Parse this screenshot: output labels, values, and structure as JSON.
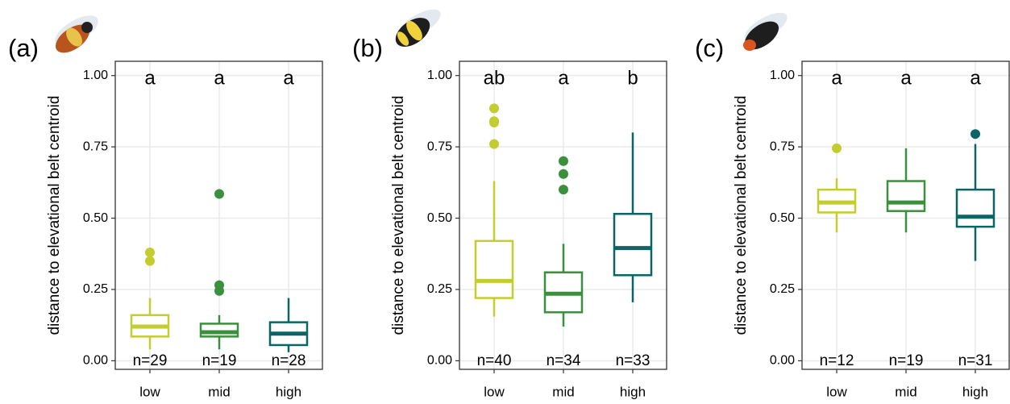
{
  "chart_data": [
    {
      "type": "box",
      "panel_label": "(a)",
      "ylabel": "distance to elevational belt centroid",
      "categories": [
        "low",
        "mid",
        "high"
      ],
      "colors": [
        "#c3cd2f",
        "#3a903c",
        "#0b6466"
      ],
      "whislo": [
        0.04,
        0.04,
        0.03
      ],
      "q1": [
        0.085,
        0.085,
        0.055
      ],
      "med": [
        0.12,
        0.1,
        0.095
      ],
      "q3": [
        0.16,
        0.13,
        0.135
      ],
      "whishi": [
        0.22,
        0.16,
        0.22
      ],
      "outliers": [
        [
          0.38,
          0.35
        ],
        [
          0.585,
          0.265,
          0.245
        ],
        []
      ],
      "letters": [
        "a",
        "a",
        "a"
      ],
      "n_labels": [
        "n=29",
        "n=19",
        "n=28"
      ],
      "ylim": [
        -0.03,
        1.05
      ],
      "yticks": [
        {
          "value": 0,
          "label": "0.00"
        },
        {
          "value": 0.25,
          "label": "0.25"
        },
        {
          "value": 0.5,
          "label": "0.50"
        },
        {
          "value": 0.75,
          "label": "0.75"
        },
        {
          "value": 1,
          "label": "1.00"
        }
      ],
      "grid": true
    },
    {
      "type": "box",
      "panel_label": "(b)",
      "ylabel": "distance to elevational belt centroid",
      "categories": [
        "low",
        "mid",
        "high"
      ],
      "colors": [
        "#c3cd2f",
        "#3a903c",
        "#0b6466"
      ],
      "whislo": [
        0.155,
        0.12,
        0.205
      ],
      "q1": [
        0.22,
        0.17,
        0.3
      ],
      "med": [
        0.28,
        0.235,
        0.395
      ],
      "q3": [
        0.42,
        0.31,
        0.515
      ],
      "whishi": [
        0.63,
        0.41,
        0.8
      ],
      "outliers": [
        [
          0.885,
          0.84,
          0.835,
          0.76
        ],
        [
          0.7,
          0.655,
          0.6
        ],
        []
      ],
      "letters": [
        "ab",
        "a",
        "b"
      ],
      "n_labels": [
        "n=40",
        "n=34",
        "n=33"
      ],
      "ylim": [
        -0.03,
        1.05
      ],
      "yticks": [
        {
          "value": 0,
          "label": "0.00"
        },
        {
          "value": 0.25,
          "label": "0.25"
        },
        {
          "value": 0.5,
          "label": "0.50"
        },
        {
          "value": 0.75,
          "label": "0.75"
        },
        {
          "value": 1,
          "label": "1.00"
        }
      ],
      "grid": true
    },
    {
      "type": "box",
      "panel_label": "(c)",
      "ylabel": "distance to elevational belt centroid",
      "categories": [
        "low",
        "mid",
        "high"
      ],
      "colors": [
        "#c3cd2f",
        "#3a903c",
        "#0b6466"
      ],
      "whislo": [
        0.45,
        0.45,
        0.35
      ],
      "q1": [
        0.52,
        0.525,
        0.47
      ],
      "med": [
        0.555,
        0.555,
        0.505
      ],
      "q3": [
        0.6,
        0.63,
        0.6
      ],
      "whishi": [
        0.64,
        0.745,
        0.76
      ],
      "outliers": [
        [
          0.745
        ],
        [],
        [
          0.795
        ]
      ],
      "letters": [
        "a",
        "a",
        "a"
      ],
      "n_labels": [
        "n=12",
        "n=19",
        "n=31"
      ],
      "ylim": [
        -0.03,
        1.05
      ],
      "yticks": [
        {
          "value": 0,
          "label": "0.00"
        },
        {
          "value": 0.25,
          "label": "0.25"
        },
        {
          "value": 0.5,
          "label": "0.50"
        },
        {
          "value": 0.75,
          "label": "0.75"
        },
        {
          "value": 1,
          "label": "1.00"
        }
      ],
      "grid": true
    }
  ]
}
